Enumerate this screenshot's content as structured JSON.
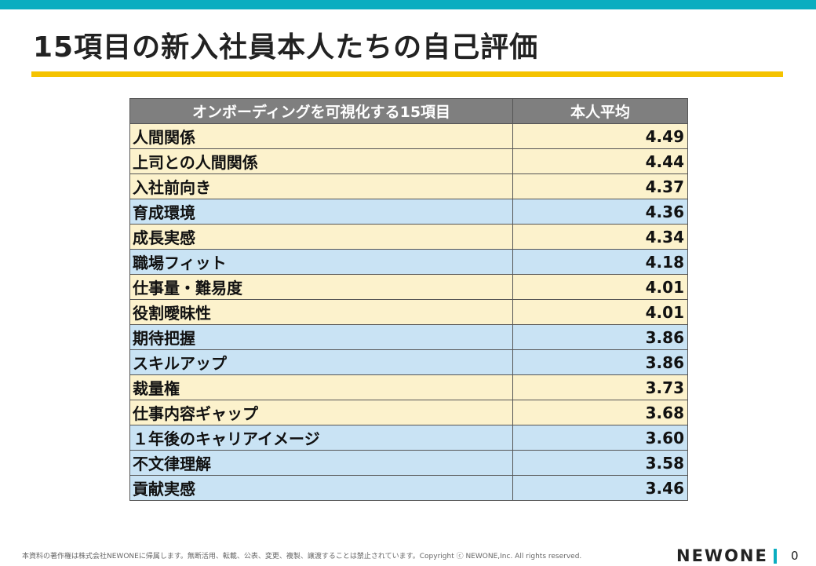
{
  "slide": {
    "title": "15項目の新入社員本人たちの自己評価",
    "page_number": "0"
  },
  "table": {
    "headers": [
      "オンボーディングを可視化する15項目",
      "本人平均"
    ],
    "rows": [
      {
        "label": "人間関係",
        "value": "4.49",
        "color": "#fcf2cc"
      },
      {
        "label": "上司との人間関係",
        "value": "4.44",
        "color": "#fcf2cc"
      },
      {
        "label": "入社前向き",
        "value": "4.37",
        "color": "#fcf2cc"
      },
      {
        "label": "育成環境",
        "value": "4.36",
        "color": "#c9e3f4"
      },
      {
        "label": "成長実感",
        "value": "4.34",
        "color": "#fcf2cc"
      },
      {
        "label": "職場フィット",
        "value": "4.18",
        "color": "#c9e3f4"
      },
      {
        "label": "仕事量・難易度",
        "value": "4.01",
        "color": "#fcf2cc"
      },
      {
        "label": "役割曖昧性",
        "value": "4.01",
        "color": "#fcf2cc"
      },
      {
        "label": "期待把握",
        "value": "3.86",
        "color": "#c9e3f4"
      },
      {
        "label": "スキルアップ",
        "value": "3.86",
        "color": "#c9e3f4"
      },
      {
        "label": "裁量権",
        "value": "3.73",
        "color": "#fcf2cc"
      },
      {
        "label": "仕事内容ギャップ",
        "value": "3.68",
        "color": "#fcf2cc"
      },
      {
        "label": "１年後のキャリアイメージ",
        "value": "3.60",
        "color": "#c9e3f4"
      },
      {
        "label": "不文律理解",
        "value": "3.58",
        "color": "#c9e3f4"
      },
      {
        "label": "貢献実感",
        "value": "3.46",
        "color": "#c9e3f4"
      }
    ]
  },
  "footer": {
    "copyright": "本資料の著作権は株式会社NEWONEに帰属します。無断活用、転載、公表、変更、複製、譲渡することは禁止されています。Copyright ⓒ NEWONE,Inc.  All rights reserved.",
    "brand": "NEWONE"
  },
  "colors": {
    "accent_teal": "#0aadc0",
    "accent_yellow": "#f5c300",
    "header_gray": "#7f7f7f",
    "row_yellow": "#fcf2cc",
    "row_blue": "#c9e3f4"
  }
}
